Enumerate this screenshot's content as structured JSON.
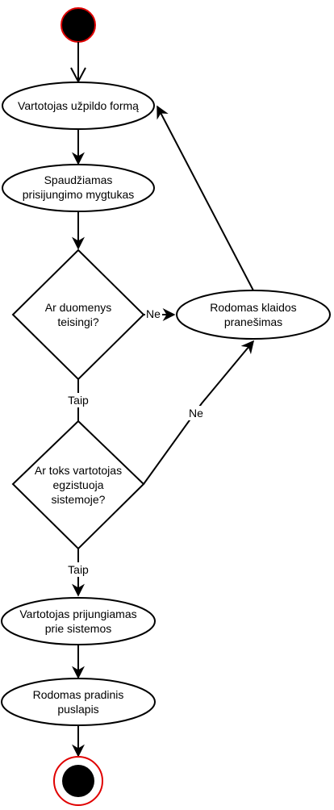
{
  "colors": {
    "stroke": "#000000",
    "fill": "#ffffff",
    "terminal_fill": "#000000",
    "terminal_ring": "#e00000"
  },
  "nodes": {
    "start": {
      "type": "initial-node"
    },
    "fill_form": {
      "label": "Vartotojas užpildo formą"
    },
    "press_login": {
      "line1": "Spaudžiamas",
      "line2": "prisijungimo mygtukas"
    },
    "data_correct": {
      "line1": "Ar duomenys",
      "line2": "teisingi?"
    },
    "error_shown": {
      "line1": "Rodomas klaidos",
      "line2": "pranešimas"
    },
    "user_exists": {
      "line1": "Ar toks vartotojas",
      "line2": "egzistuoja",
      "line3": "sistemoje?"
    },
    "user_logged_in": {
      "line1": "Vartotojas prijungiamas",
      "line2": "prie sistemos"
    },
    "home_shown": {
      "line1": "Rodomas pradinis",
      "line2": "puslapis"
    },
    "end": {
      "type": "final-node"
    }
  },
  "edges": {
    "data_no": "Ne",
    "data_yes": "Taip",
    "exists_no": "Ne",
    "exists_yes": "Taip"
  }
}
